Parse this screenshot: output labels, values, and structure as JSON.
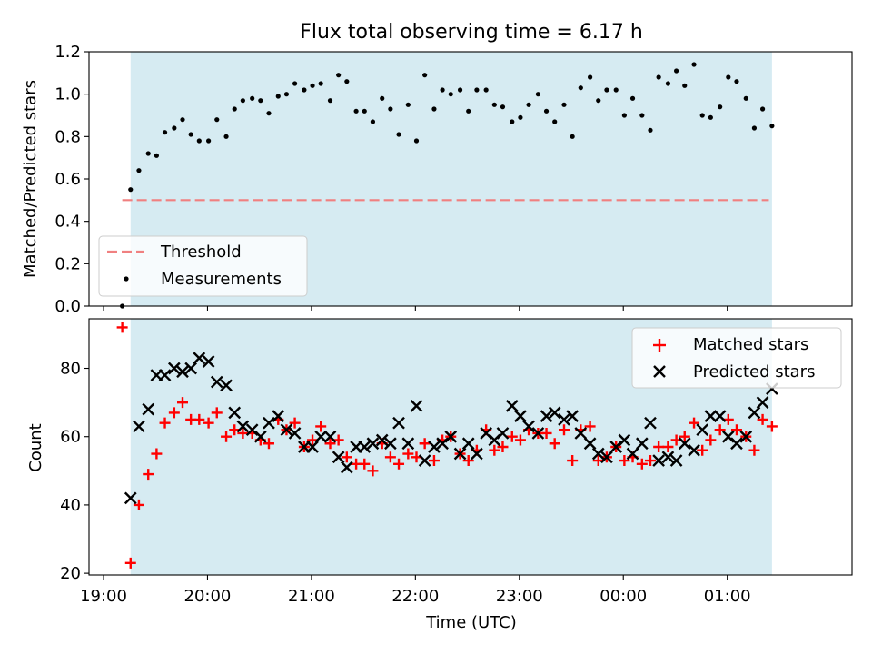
{
  "figure": {
    "title": "Flux total observing time = 6.17 h",
    "xlabel": "Time (UTC)",
    "x_tick_labels": [
      "19:00",
      "20:00",
      "21:00",
      "22:00",
      "23:00",
      "00:00",
      "01:00"
    ],
    "x_ticks_hours": [
      19,
      20,
      21,
      22,
      23,
      24,
      25
    ],
    "xlim_hours": [
      18.86,
      26.2
    ],
    "observing_span_hours": [
      19.26,
      25.43
    ],
    "colors": {
      "span": "#add8e6",
      "threshold": "#f08080",
      "matched": "#ff0000",
      "predicted": "#000000",
      "measurement": "#000000"
    }
  },
  "chart_data": [
    {
      "type": "scatter",
      "ylabel": "Matched/Predicted stars",
      "ylim": [
        0,
        1.2
      ],
      "y_ticks": [
        0.0,
        0.2,
        0.4,
        0.6,
        0.8,
        1.0,
        1.2
      ],
      "y_tick_labels": [
        "0.0",
        "0.2",
        "0.4",
        "0.6",
        "0.8",
        "1.0",
        "1.2"
      ],
      "legend_position": "lower-left",
      "threshold": {
        "name": "Threshold",
        "value": 0.5,
        "x_range": [
          19.18,
          25.4
        ],
        "style": "dashed"
      },
      "series": [
        {
          "name": "Measurements",
          "marker": "dot",
          "x": [
            19.18,
            19.26,
            19.34,
            19.43,
            19.51,
            19.59,
            19.68,
            19.76,
            19.84,
            19.92,
            20.01,
            20.09,
            20.18,
            20.26,
            20.34,
            20.43,
            20.51,
            20.59,
            20.68,
            20.76,
            20.84,
            20.93,
            21.01,
            21.09,
            21.18,
            21.26,
            21.34,
            21.43,
            21.51,
            21.59,
            21.68,
            21.76,
            21.84,
            21.93,
            22.01,
            22.09,
            22.18,
            22.26,
            22.34,
            22.43,
            22.51,
            22.59,
            22.68,
            22.76,
            22.84,
            22.93,
            23.01,
            23.09,
            23.18,
            23.26,
            23.34,
            23.43,
            23.51,
            23.59,
            23.68,
            23.76,
            23.84,
            23.93,
            24.01,
            24.09,
            24.18,
            24.26,
            24.34,
            24.43,
            24.51,
            24.59,
            24.68,
            24.76,
            24.84,
            24.93,
            25.01,
            25.09,
            25.18,
            25.26,
            25.34,
            25.43
          ],
          "y": [
            0.0,
            0.55,
            0.64,
            0.72,
            0.71,
            0.82,
            0.84,
            0.88,
            0.81,
            0.78,
            0.78,
            0.88,
            0.8,
            0.93,
            0.97,
            0.98,
            0.97,
            0.91,
            0.99,
            1.0,
            1.05,
            1.02,
            1.04,
            1.05,
            0.97,
            1.09,
            1.06,
            0.92,
            0.92,
            0.87,
            0.98,
            0.93,
            0.81,
            0.95,
            0.78,
            1.09,
            0.93,
            1.02,
            1.0,
            1.02,
            0.92,
            1.02,
            1.02,
            0.95,
            0.94,
            0.87,
            0.89,
            0.95,
            1.0,
            0.92,
            0.87,
            0.95,
            0.8,
            1.03,
            1.08,
            0.97,
            1.02,
            1.02,
            0.9,
            0.98,
            0.9,
            0.83,
            1.08,
            1.05,
            1.11,
            1.04,
            1.14,
            0.9,
            0.89,
            0.94,
            1.08,
            1.06,
            0.98,
            0.84,
            0.93,
            0.85
          ]
        }
      ]
    },
    {
      "type": "scatter",
      "ylabel": "Count",
      "ylim": [
        19.5,
        94.5
      ],
      "y_ticks": [
        20,
        40,
        60,
        80
      ],
      "y_tick_labels": [
        "20",
        "40",
        "60",
        "80"
      ],
      "legend_position": "upper-right",
      "series": [
        {
          "name": "Matched stars",
          "marker": "plus",
          "x": [
            19.18,
            19.26,
            19.34,
            19.43,
            19.51,
            19.59,
            19.68,
            19.76,
            19.84,
            19.92,
            20.01,
            20.09,
            20.18,
            20.26,
            20.34,
            20.43,
            20.51,
            20.59,
            20.68,
            20.76,
            20.84,
            20.93,
            21.01,
            21.09,
            21.18,
            21.26,
            21.34,
            21.43,
            21.51,
            21.59,
            21.68,
            21.76,
            21.84,
            21.93,
            22.01,
            22.09,
            22.18,
            22.26,
            22.34,
            22.43,
            22.51,
            22.59,
            22.68,
            22.76,
            22.84,
            22.93,
            23.01,
            23.09,
            23.18,
            23.26,
            23.34,
            23.43,
            23.51,
            23.59,
            23.68,
            23.76,
            23.84,
            23.93,
            24.01,
            24.09,
            24.18,
            24.26,
            24.34,
            24.43,
            24.51,
            24.59,
            24.68,
            24.76,
            24.84,
            24.93,
            25.01,
            25.09,
            25.18,
            25.26,
            25.34,
            25.43
          ],
          "y": [
            92,
            23,
            40,
            49,
            55,
            64,
            67,
            70,
            65,
            65,
            64,
            67,
            60,
            62,
            61,
            61,
            59,
            58,
            65,
            62,
            64,
            57,
            59,
            63,
            58,
            59,
            54,
            52,
            52,
            50,
            58,
            54,
            52,
            55,
            54,
            58,
            53,
            59,
            60,
            55,
            53,
            56,
            62,
            56,
            57,
            60,
            59,
            62,
            61,
            61,
            58,
            62,
            53,
            62,
            63,
            53,
            54,
            57,
            53,
            54,
            52,
            53,
            57,
            57,
            59,
            60,
            64,
            56,
            59,
            62,
            65,
            62,
            60,
            56,
            65,
            63
          ]
        },
        {
          "name": "Predicted stars",
          "marker": "x",
          "x": [
            19.26,
            19.34,
            19.43,
            19.51,
            19.59,
            19.68,
            19.76,
            19.84,
            19.92,
            20.01,
            20.09,
            20.18,
            20.26,
            20.34,
            20.43,
            20.51,
            20.59,
            20.68,
            20.76,
            20.84,
            20.93,
            21.01,
            21.09,
            21.18,
            21.26,
            21.34,
            21.43,
            21.51,
            21.59,
            21.68,
            21.76,
            21.84,
            21.93,
            22.01,
            22.09,
            22.18,
            22.26,
            22.34,
            22.43,
            22.51,
            22.59,
            22.68,
            22.76,
            22.84,
            22.93,
            23.01,
            23.09,
            23.18,
            23.26,
            23.34,
            23.43,
            23.51,
            23.59,
            23.68,
            23.76,
            23.84,
            23.93,
            24.01,
            24.09,
            24.18,
            24.26,
            24.34,
            24.43,
            24.51,
            24.59,
            24.68,
            24.76,
            24.84,
            24.93,
            25.01,
            25.09,
            25.18,
            25.26,
            25.34,
            25.43
          ],
          "y": [
            42,
            63,
            68,
            78,
            78,
            80,
            79,
            80,
            83,
            82,
            76,
            75,
            67,
            63,
            62,
            60,
            64,
            66,
            62,
            61,
            57,
            57,
            60,
            60,
            54,
            51,
            57,
            57,
            58,
            59,
            58,
            64,
            58,
            69,
            53,
            57,
            58,
            60,
            55,
            58,
            55,
            61,
            59,
            61,
            69,
            66,
            63,
            61,
            66,
            67,
            65,
            66,
            61,
            58,
            55,
            54,
            57,
            59,
            55,
            58,
            64,
            53,
            54,
            53,
            58,
            56,
            62,
            66,
            66,
            60,
            58,
            60,
            67,
            70,
            74
          ]
        }
      ]
    }
  ]
}
